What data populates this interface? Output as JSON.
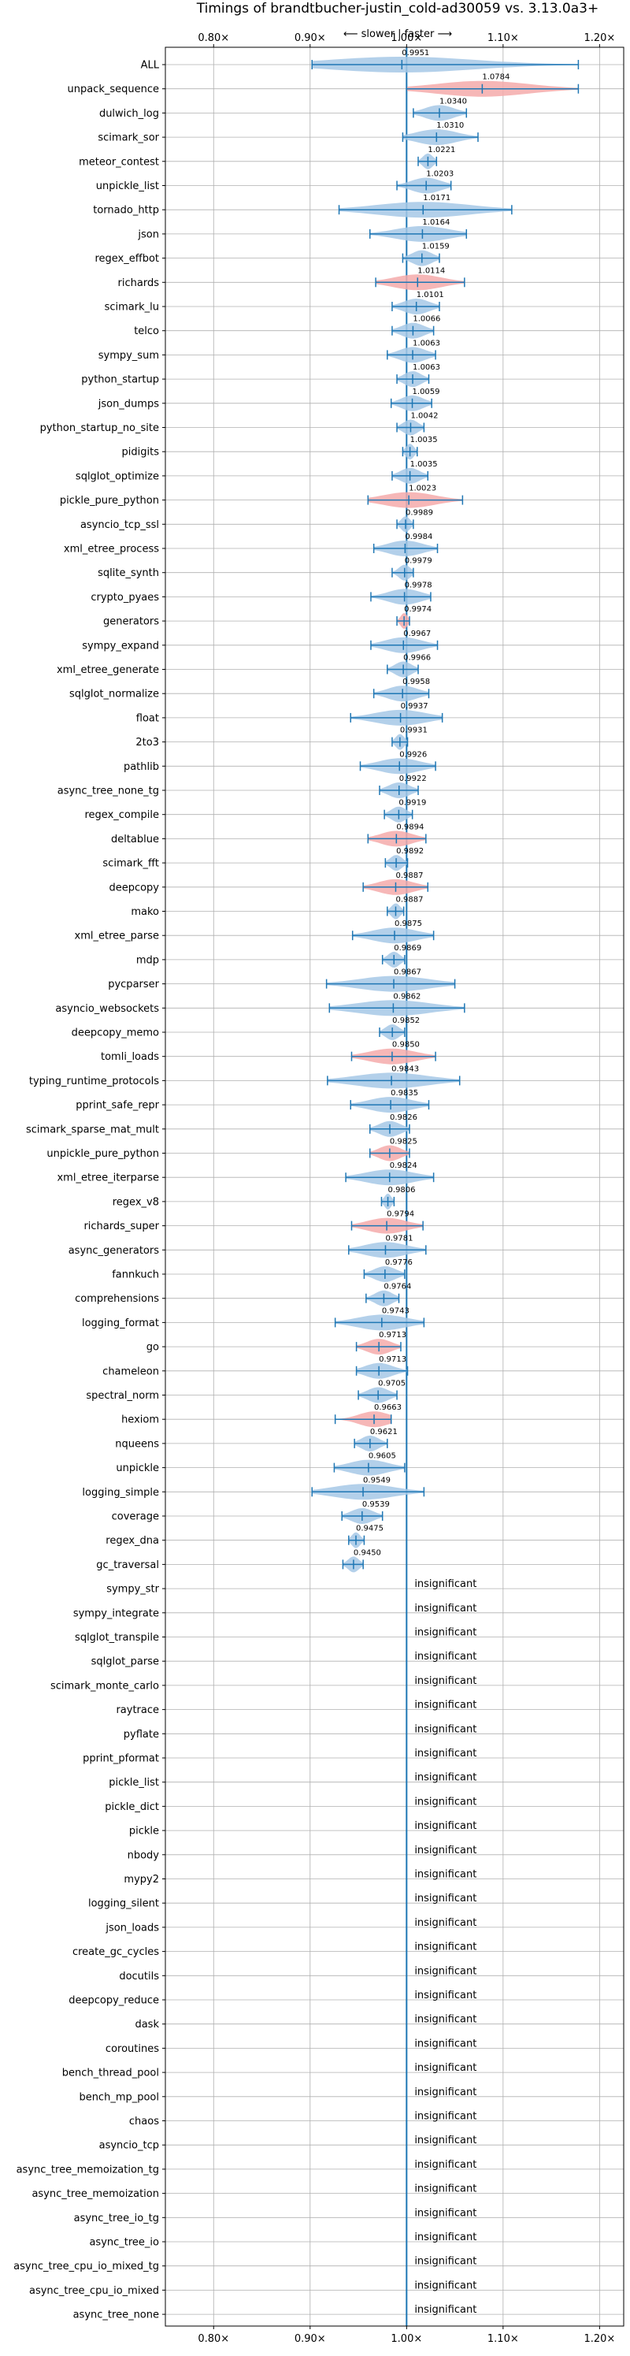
{
  "chart_data": {
    "type": "violin",
    "title": "Timings of brandtbucher-justin_cold-ad30059 vs. 3.13.0a3+",
    "subtitle": "⟵ slower | faster ⟶",
    "x_ticks": [
      "0.80×",
      "0.90×",
      "1.00×",
      "1.10×",
      "1.20×"
    ],
    "x_tick_values": [
      0.8,
      0.9,
      1.0,
      1.1,
      1.2
    ],
    "xlim": [
      0.75,
      1.225
    ],
    "reference_line": 1.0,
    "grid": true,
    "colors": {
      "faster": "#a6c8e6",
      "slower": "#f4aaaa",
      "line": "#1f77b4"
    },
    "insignificant_label": "insignificant",
    "benchmarks": [
      {
        "name": "ALL",
        "label": "0.9951",
        "mean": 0.9951,
        "lo": 0.902,
        "hi": 1.178,
        "color": "faster"
      },
      {
        "name": "unpack_sequence",
        "label": "1.0784",
        "mean": 1.0784,
        "lo": 1.0,
        "hi": 1.178,
        "color": "slower"
      },
      {
        "name": "dulwich_log",
        "label": "1.0340",
        "mean": 1.034,
        "lo": 1.007,
        "hi": 1.062,
        "color": "faster"
      },
      {
        "name": "scimark_sor",
        "label": "1.0310",
        "mean": 1.031,
        "lo": 0.996,
        "hi": 1.074,
        "color": "faster"
      },
      {
        "name": "meteor_contest",
        "label": "1.0221",
        "mean": 1.0221,
        "lo": 1.012,
        "hi": 1.031,
        "color": "faster"
      },
      {
        "name": "unpickle_list",
        "label": "1.0203",
        "mean": 1.0203,
        "lo": 0.99,
        "hi": 1.046,
        "color": "faster"
      },
      {
        "name": "tornado_http",
        "label": "1.0171",
        "mean": 1.0171,
        "lo": 0.93,
        "hi": 1.109,
        "color": "faster"
      },
      {
        "name": "json",
        "label": "1.0164",
        "mean": 1.0164,
        "lo": 0.962,
        "hi": 1.062,
        "color": "faster"
      },
      {
        "name": "regex_effbot",
        "label": "1.0159",
        "mean": 1.0159,
        "lo": 0.996,
        "hi": 1.034,
        "color": "faster"
      },
      {
        "name": "richards",
        "label": "1.0114",
        "mean": 1.0114,
        "lo": 0.968,
        "hi": 1.06,
        "color": "slower"
      },
      {
        "name": "scimark_lu",
        "label": "1.0101",
        "mean": 1.0101,
        "lo": 0.985,
        "hi": 1.034,
        "color": "faster"
      },
      {
        "name": "telco",
        "label": "1.0066",
        "mean": 1.0066,
        "lo": 0.985,
        "hi": 1.028,
        "color": "faster"
      },
      {
        "name": "sympy_sum",
        "label": "1.0063",
        "mean": 1.0063,
        "lo": 0.98,
        "hi": 1.03,
        "color": "faster"
      },
      {
        "name": "python_startup",
        "label": "1.0063",
        "mean": 1.0063,
        "lo": 0.99,
        "hi": 1.023,
        "color": "faster"
      },
      {
        "name": "json_dumps",
        "label": "1.0059",
        "mean": 1.0059,
        "lo": 0.984,
        "hi": 1.026,
        "color": "faster"
      },
      {
        "name": "python_startup_no_site",
        "label": "1.0042",
        "mean": 1.0042,
        "lo": 0.99,
        "hi": 1.018,
        "color": "faster"
      },
      {
        "name": "pidigits",
        "label": "1.0035",
        "mean": 1.0035,
        "lo": 0.996,
        "hi": 1.011,
        "color": "faster"
      },
      {
        "name": "sqlglot_optimize",
        "label": "1.0035",
        "mean": 1.0035,
        "lo": 0.985,
        "hi": 1.022,
        "color": "faster"
      },
      {
        "name": "pickle_pure_python",
        "label": "1.0023",
        "mean": 1.0023,
        "lo": 0.96,
        "hi": 1.058,
        "color": "slower"
      },
      {
        "name": "asyncio_tcp_ssl",
        "label": "0.9989",
        "mean": 0.9989,
        "lo": 0.99,
        "hi": 1.007,
        "color": "faster"
      },
      {
        "name": "xml_etree_process",
        "label": "0.9984",
        "mean": 0.9984,
        "lo": 0.966,
        "hi": 1.032,
        "color": "faster"
      },
      {
        "name": "sqlite_synth",
        "label": "0.9979",
        "mean": 0.9979,
        "lo": 0.985,
        "hi": 1.007,
        "color": "faster"
      },
      {
        "name": "crypto_pyaes",
        "label": "0.9978",
        "mean": 0.9978,
        "lo": 0.963,
        "hi": 1.025,
        "color": "faster"
      },
      {
        "name": "generators",
        "label": "0.9974",
        "mean": 0.9974,
        "lo": 0.99,
        "hi": 1.003,
        "color": "slower"
      },
      {
        "name": "sympy_expand",
        "label": "0.9967",
        "mean": 0.9967,
        "lo": 0.963,
        "hi": 1.032,
        "color": "faster"
      },
      {
        "name": "xml_etree_generate",
        "label": "0.9966",
        "mean": 0.9966,
        "lo": 0.98,
        "hi": 1.012,
        "color": "faster"
      },
      {
        "name": "sqlglot_normalize",
        "label": "0.9958",
        "mean": 0.9958,
        "lo": 0.966,
        "hi": 1.023,
        "color": "faster"
      },
      {
        "name": "float",
        "label": "0.9937",
        "mean": 0.9937,
        "lo": 0.942,
        "hi": 1.037,
        "color": "faster"
      },
      {
        "name": "2to3",
        "label": "0.9931",
        "mean": 0.9931,
        "lo": 0.985,
        "hi": 1.001,
        "color": "faster"
      },
      {
        "name": "pathlib",
        "label": "0.9926",
        "mean": 0.9926,
        "lo": 0.952,
        "hi": 1.03,
        "color": "faster"
      },
      {
        "name": "async_tree_none_tg",
        "label": "0.9922",
        "mean": 0.9922,
        "lo": 0.972,
        "hi": 1.012,
        "color": "faster"
      },
      {
        "name": "regex_compile",
        "label": "0.9919",
        "mean": 0.9919,
        "lo": 0.977,
        "hi": 1.006,
        "color": "faster"
      },
      {
        "name": "deltablue",
        "label": "0.9894",
        "mean": 0.9894,
        "lo": 0.96,
        "hi": 1.02,
        "color": "slower"
      },
      {
        "name": "scimark_fft",
        "label": "0.9892",
        "mean": 0.9892,
        "lo": 0.978,
        "hi": 1.001,
        "color": "faster"
      },
      {
        "name": "deepcopy",
        "label": "0.9887",
        "mean": 0.9887,
        "lo": 0.955,
        "hi": 1.022,
        "color": "slower"
      },
      {
        "name": "mako",
        "label": "0.9887",
        "mean": 0.9887,
        "lo": 0.98,
        "hi": 0.997,
        "color": "faster"
      },
      {
        "name": "xml_etree_parse",
        "label": "0.9875",
        "mean": 0.9875,
        "lo": 0.944,
        "hi": 1.028,
        "color": "faster"
      },
      {
        "name": "mdp",
        "label": "0.9869",
        "mean": 0.9869,
        "lo": 0.975,
        "hi": 0.998,
        "color": "faster"
      },
      {
        "name": "pycparser",
        "label": "0.9867",
        "mean": 0.9867,
        "lo": 0.917,
        "hi": 1.05,
        "color": "faster"
      },
      {
        "name": "asyncio_websockets",
        "label": "0.9862",
        "mean": 0.9862,
        "lo": 0.92,
        "hi": 1.06,
        "color": "faster"
      },
      {
        "name": "deepcopy_memo",
        "label": "0.9852",
        "mean": 0.9852,
        "lo": 0.972,
        "hi": 0.998,
        "color": "faster"
      },
      {
        "name": "tomli_loads",
        "label": "0.9850",
        "mean": 0.985,
        "lo": 0.943,
        "hi": 1.03,
        "color": "slower"
      },
      {
        "name": "typing_runtime_protocols",
        "label": "0.9843",
        "mean": 0.9843,
        "lo": 0.918,
        "hi": 1.055,
        "color": "faster"
      },
      {
        "name": "pprint_safe_repr",
        "label": "0.9835",
        "mean": 0.9835,
        "lo": 0.942,
        "hi": 1.023,
        "color": "faster"
      },
      {
        "name": "scimark_sparse_mat_mult",
        "label": "0.9826",
        "mean": 0.9826,
        "lo": 0.962,
        "hi": 1.003,
        "color": "faster"
      },
      {
        "name": "unpickle_pure_python",
        "label": "0.9825",
        "mean": 0.9825,
        "lo": 0.962,
        "hi": 1.003,
        "color": "slower"
      },
      {
        "name": "xml_etree_iterparse",
        "label": "0.9824",
        "mean": 0.9824,
        "lo": 0.937,
        "hi": 1.028,
        "color": "faster"
      },
      {
        "name": "regex_v8",
        "label": "0.9806",
        "mean": 0.9806,
        "lo": 0.974,
        "hi": 0.987,
        "color": "faster"
      },
      {
        "name": "richards_super",
        "label": "0.9794",
        "mean": 0.9794,
        "lo": 0.943,
        "hi": 1.017,
        "color": "slower"
      },
      {
        "name": "async_generators",
        "label": "0.9781",
        "mean": 0.9781,
        "lo": 0.94,
        "hi": 1.02,
        "color": "faster"
      },
      {
        "name": "fannkuch",
        "label": "0.9776",
        "mean": 0.9776,
        "lo": 0.956,
        "hi": 0.998,
        "color": "faster"
      },
      {
        "name": "comprehensions",
        "label": "0.9764",
        "mean": 0.9764,
        "lo": 0.958,
        "hi": 0.992,
        "color": "faster"
      },
      {
        "name": "logging_format",
        "label": "0.9743",
        "mean": 0.9743,
        "lo": 0.926,
        "hi": 1.018,
        "color": "faster"
      },
      {
        "name": "go",
        "label": "0.9713",
        "mean": 0.9713,
        "lo": 0.948,
        "hi": 0.994,
        "color": "slower"
      },
      {
        "name": "chameleon",
        "label": "0.9713",
        "mean": 0.9713,
        "lo": 0.948,
        "hi": 1.001,
        "color": "faster"
      },
      {
        "name": "spectral_norm",
        "label": "0.9705",
        "mean": 0.9705,
        "lo": 0.95,
        "hi": 0.99,
        "color": "faster"
      },
      {
        "name": "hexiom",
        "label": "0.9663",
        "mean": 0.9663,
        "lo": 0.926,
        "hi": 0.984,
        "color": "slower"
      },
      {
        "name": "nqueens",
        "label": "0.9621",
        "mean": 0.9621,
        "lo": 0.946,
        "hi": 0.98,
        "color": "faster"
      },
      {
        "name": "unpickle",
        "label": "0.9605",
        "mean": 0.9605,
        "lo": 0.925,
        "hi": 0.998,
        "color": "faster"
      },
      {
        "name": "logging_simple",
        "label": "0.9549",
        "mean": 0.9549,
        "lo": 0.902,
        "hi": 1.018,
        "color": "faster"
      },
      {
        "name": "coverage",
        "label": "0.9539",
        "mean": 0.9539,
        "lo": 0.933,
        "hi": 0.975,
        "color": "faster"
      },
      {
        "name": "regex_dna",
        "label": "0.9475",
        "mean": 0.9475,
        "lo": 0.94,
        "hi": 0.956,
        "color": "faster"
      },
      {
        "name": "gc_traversal",
        "label": "0.9450",
        "mean": 0.945,
        "lo": 0.934,
        "hi": 0.955,
        "color": "faster"
      },
      {
        "name": "sympy_str",
        "insignificant": true
      },
      {
        "name": "sympy_integrate",
        "insignificant": true
      },
      {
        "name": "sqlglot_transpile",
        "insignificant": true
      },
      {
        "name": "sqlglot_parse",
        "insignificant": true
      },
      {
        "name": "scimark_monte_carlo",
        "insignificant": true
      },
      {
        "name": "raytrace",
        "insignificant": true
      },
      {
        "name": "pyflate",
        "insignificant": true
      },
      {
        "name": "pprint_pformat",
        "insignificant": true
      },
      {
        "name": "pickle_list",
        "insignificant": true
      },
      {
        "name": "pickle_dict",
        "insignificant": true
      },
      {
        "name": "pickle",
        "insignificant": true
      },
      {
        "name": "nbody",
        "insignificant": true
      },
      {
        "name": "mypy2",
        "insignificant": true
      },
      {
        "name": "logging_silent",
        "insignificant": true
      },
      {
        "name": "json_loads",
        "insignificant": true
      },
      {
        "name": "create_gc_cycles",
        "insignificant": true
      },
      {
        "name": "docutils",
        "insignificant": true
      },
      {
        "name": "deepcopy_reduce",
        "insignificant": true
      },
      {
        "name": "dask",
        "insignificant": true
      },
      {
        "name": "coroutines",
        "insignificant": true
      },
      {
        "name": "bench_thread_pool",
        "insignificant": true
      },
      {
        "name": "bench_mp_pool",
        "insignificant": true
      },
      {
        "name": "chaos",
        "insignificant": true
      },
      {
        "name": "asyncio_tcp",
        "insignificant": true
      },
      {
        "name": "async_tree_memoization_tg",
        "insignificant": true
      },
      {
        "name": "async_tree_memoization",
        "insignificant": true
      },
      {
        "name": "async_tree_io_tg",
        "insignificant": true
      },
      {
        "name": "async_tree_io",
        "insignificant": true
      },
      {
        "name": "async_tree_cpu_io_mixed_tg",
        "insignificant": true
      },
      {
        "name": "async_tree_cpu_io_mixed",
        "insignificant": true
      },
      {
        "name": "async_tree_none",
        "insignificant": true
      }
    ]
  }
}
